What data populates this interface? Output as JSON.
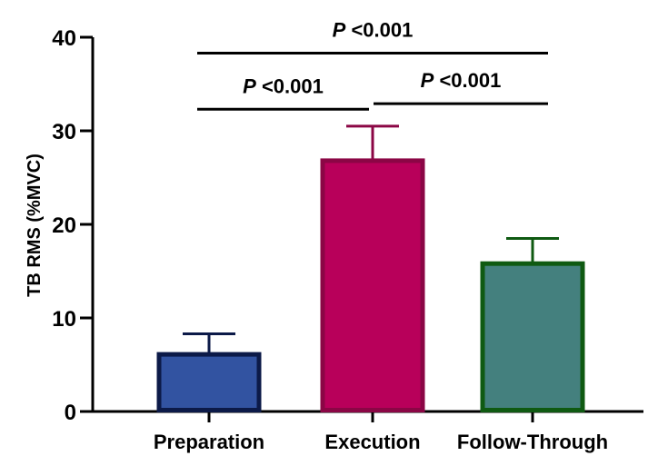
{
  "chart_data": {
    "type": "bar",
    "title": "",
    "xlabel": "",
    "ylabel": "TB RMS (%MVC)",
    "ylim": [
      0,
      40
    ],
    "yticks": [
      0,
      10,
      20,
      30,
      40
    ],
    "categories": [
      "Preparation",
      "Execution",
      "Follow-Through"
    ],
    "values": [
      6.3,
      27.0,
      16.0
    ],
    "error_upper": [
      8.3,
      30.5,
      18.5
    ],
    "bar_fill_colors": [
      "#3253a1",
      "#b8005a",
      "#44807e"
    ],
    "bar_border_colors": [
      "#0c1a48",
      "#8b0645",
      "#0f5a12"
    ],
    "significance": [
      {
        "from": 0,
        "to": 1,
        "y": 32.3,
        "p_symbol": "P",
        "text": " <0.001"
      },
      {
        "from": 1,
        "to": 2,
        "y": 32.9,
        "p_symbol": "P",
        "text": " <0.001"
      },
      {
        "from": 0,
        "to": 2,
        "y": 38.3,
        "p_symbol": "P",
        "text": " <0.001"
      }
    ]
  }
}
